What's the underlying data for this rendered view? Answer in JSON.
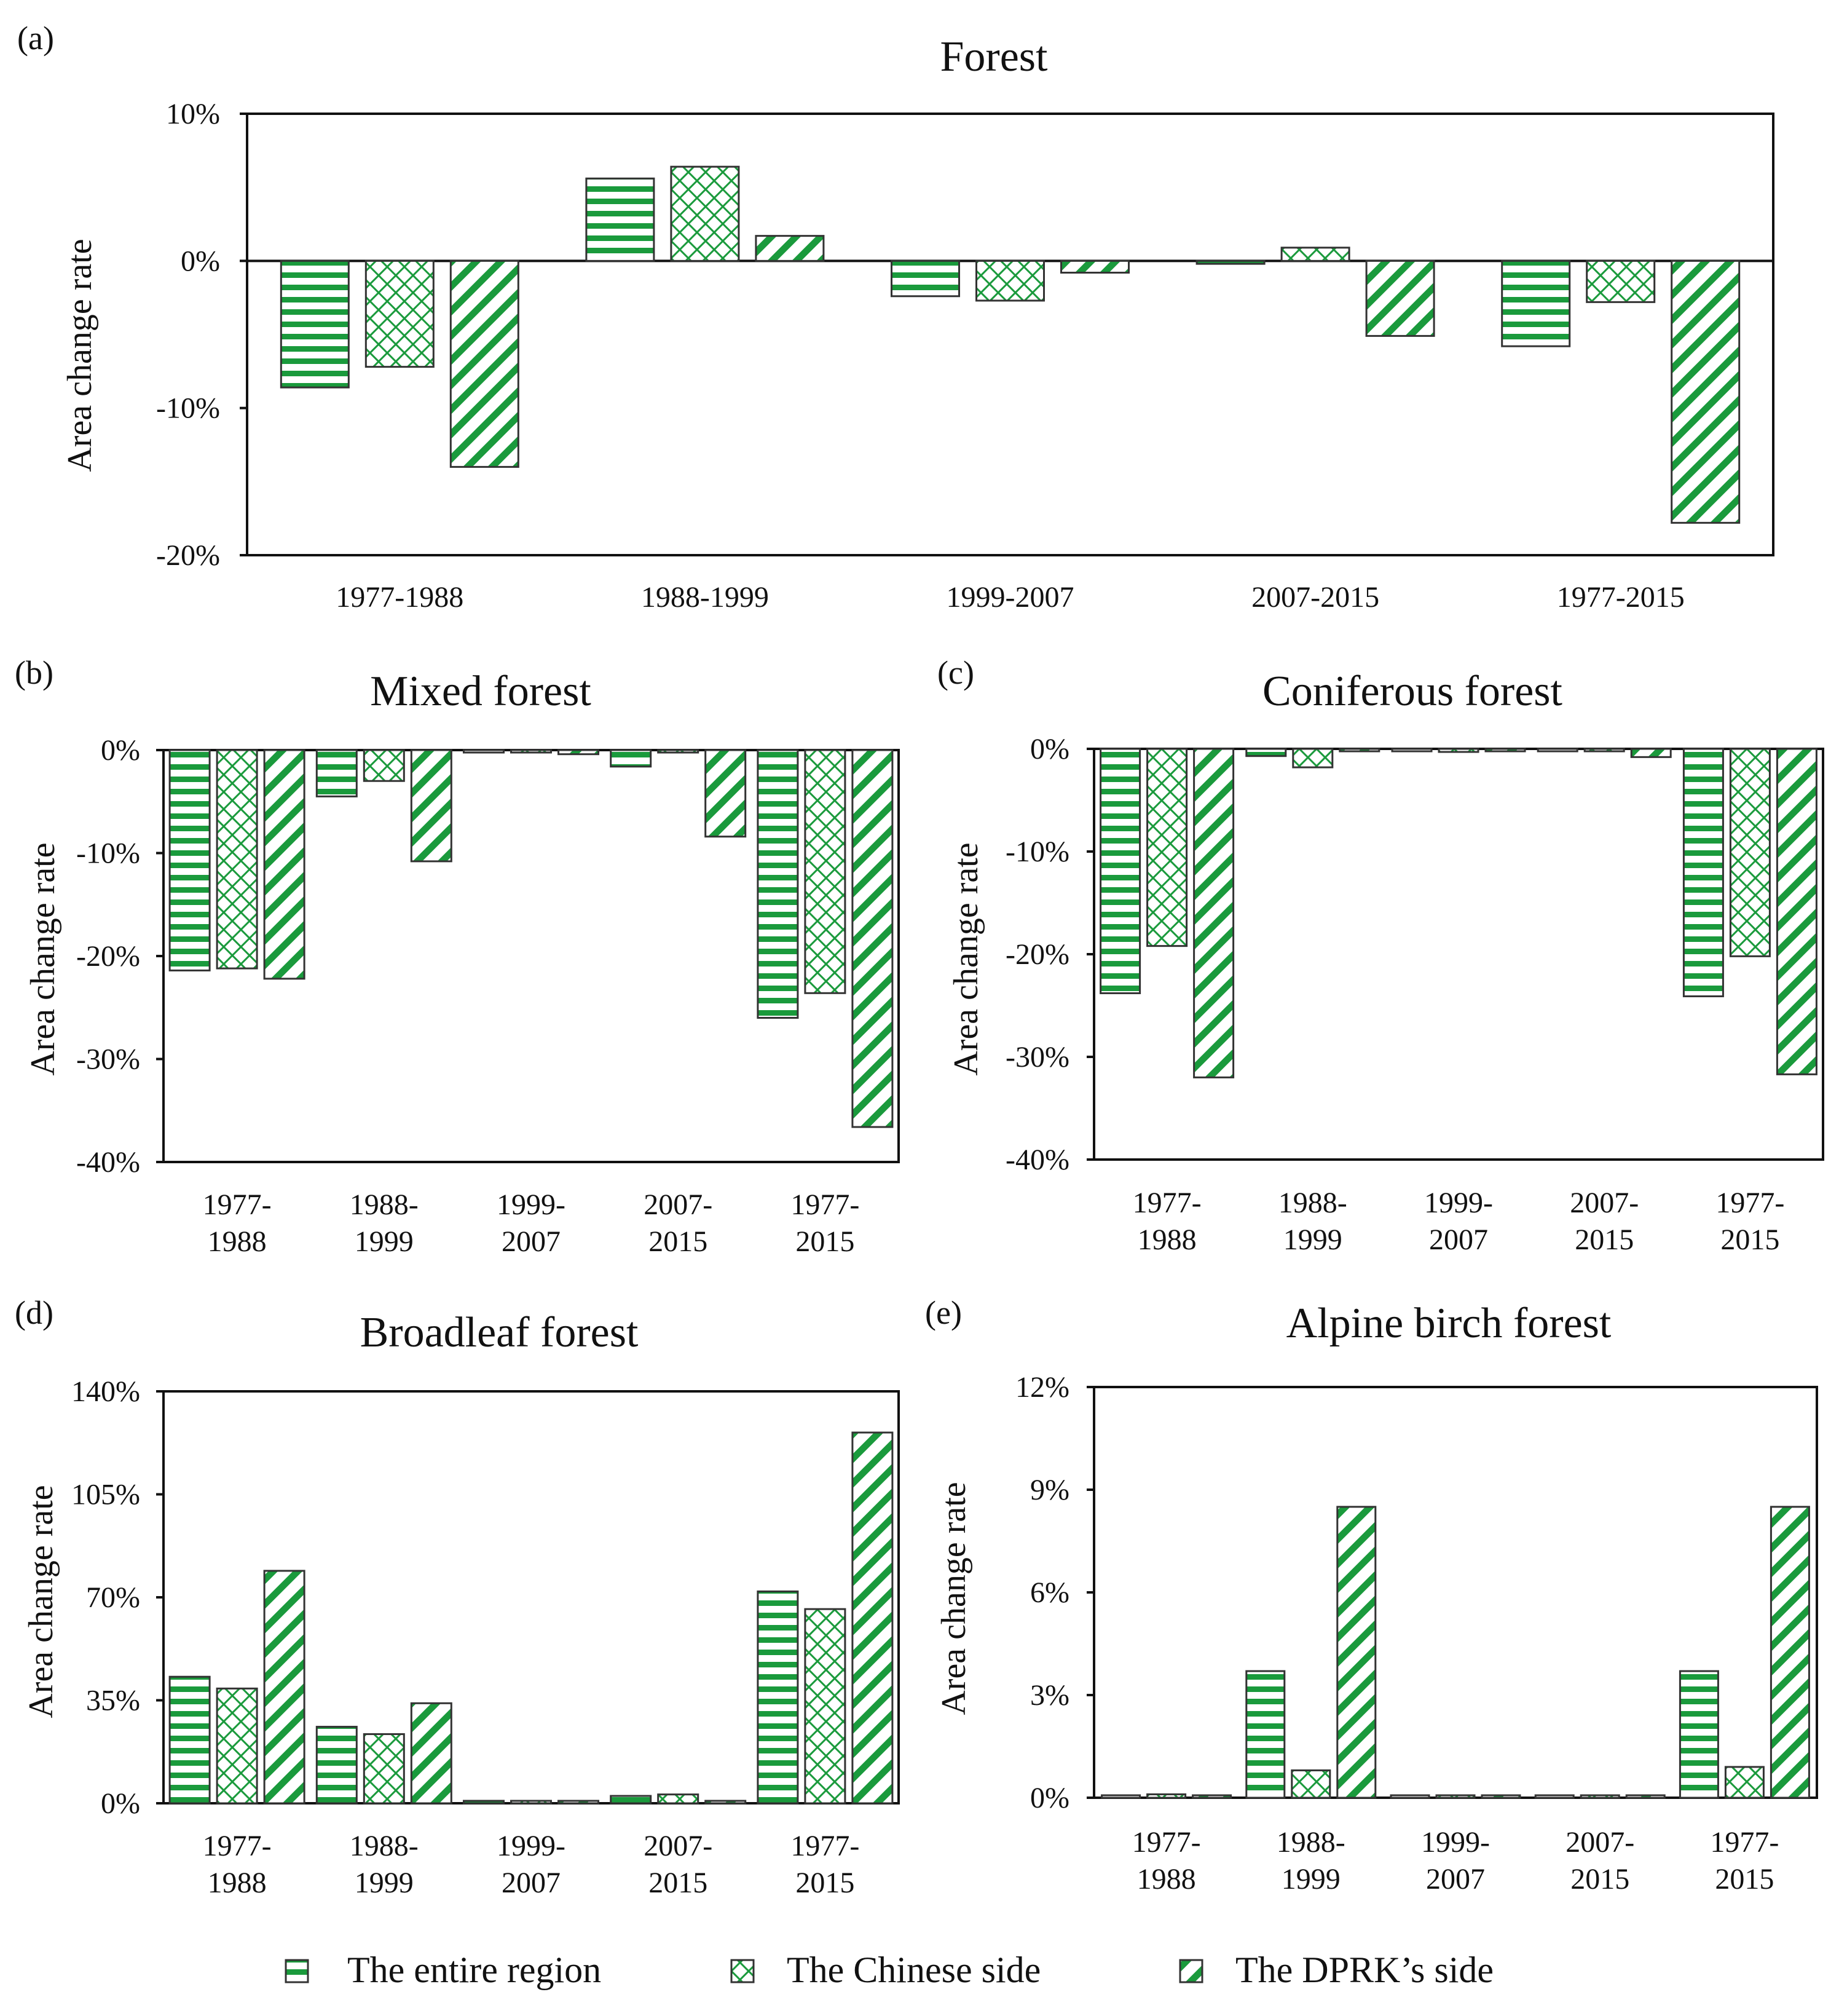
{
  "colors": {
    "bar_fill": "#1a9a3c",
    "bar_edge": "#333333",
    "pattern_bg": "#ffffff",
    "axis": "#111111"
  },
  "legend": [
    {
      "name": "The entire region",
      "pattern": "horizontal-lines"
    },
    {
      "name": "The Chinese side",
      "pattern": "crosshatch"
    },
    {
      "name": "The DPRK’s side",
      "pattern": "diagonal-lines"
    }
  ],
  "chart_data": [
    {
      "panel": "(a)",
      "type": "bar",
      "title": "Forest",
      "ylabel": "Area change rate",
      "xlabel": "",
      "ylim": [
        -20,
        10
      ],
      "yticks": [
        10,
        0,
        -10,
        -20
      ],
      "ytick_labels": [
        "10%",
        "0%",
        "-10%",
        "-20%"
      ],
      "categories": [
        "1977-1988",
        "1988-1999",
        "1999-2007",
        "2007-2015",
        "1977-2015"
      ],
      "series": [
        {
          "name": "The entire region",
          "values": [
            -8.6,
            5.6,
            -2.4,
            -0.2,
            -5.8
          ]
        },
        {
          "name": "The Chinese side",
          "values": [
            -7.2,
            6.4,
            -2.7,
            0.9,
            -2.8
          ]
        },
        {
          "name": "The DPRK’s side",
          "values": [
            -14.0,
            1.7,
            -0.8,
            -5.1,
            -17.8
          ]
        }
      ]
    },
    {
      "panel": "(b)",
      "type": "bar",
      "title": "Mixed forest",
      "ylabel": "Area change rate",
      "xlabel": "",
      "ylim": [
        -40,
        0
      ],
      "yticks": [
        0,
        -10,
        -20,
        -30,
        -40
      ],
      "ytick_labels": [
        "0%",
        "-10%",
        "-20%",
        "-30%",
        "-40%"
      ],
      "categories": [
        "1977-\n1988",
        "1988-\n1999",
        "1999-\n2007",
        "2007-\n2015",
        "1977-\n2015"
      ],
      "series": [
        {
          "name": "The entire region",
          "values": [
            -21.4,
            -4.5,
            -0.2,
            -1.6,
            -26.0
          ]
        },
        {
          "name": "The Chinese side",
          "values": [
            -21.2,
            -3.0,
            -0.2,
            -0.2,
            -23.6
          ]
        },
        {
          "name": "The DPRK’s side",
          "values": [
            -22.2,
            -10.8,
            -0.4,
            -8.4,
            -36.6
          ]
        }
      ]
    },
    {
      "panel": "(c)",
      "type": "bar",
      "title": "Coniferous forest",
      "ylabel": "Area change rate",
      "xlabel": "",
      "ylim": [
        -40,
        0
      ],
      "yticks": [
        0,
        -10,
        -20,
        -30,
        -40
      ],
      "ytick_labels": [
        "0%",
        "-10%",
        "-20%",
        "-30%",
        "-40%"
      ],
      "categories": [
        "1977-\n1988",
        "1988-\n1999",
        "1999-\n2007",
        "2007-\n2015",
        "1977-\n2015"
      ],
      "series": [
        {
          "name": "The entire region",
          "values": [
            -23.8,
            -0.7,
            -0.2,
            -0.2,
            -24.1
          ]
        },
        {
          "name": "The Chinese side",
          "values": [
            -19.2,
            -1.8,
            -0.3,
            -0.2,
            -20.2
          ]
        },
        {
          "name": "The DPRK’s side",
          "values": [
            -32.0,
            -0.2,
            -0.2,
            -0.8,
            -31.7
          ]
        }
      ]
    },
    {
      "panel": "(d)",
      "type": "bar",
      "title": "Broadleaf forest",
      "ylabel": "Area change rate",
      "xlabel": "",
      "ylim": [
        0,
        140
      ],
      "yticks": [
        140,
        105,
        70,
        35,
        0
      ],
      "ytick_labels": [
        "140%",
        "105%",
        "70%",
        "35%",
        "0%"
      ],
      "categories": [
        "1977-\n1988",
        "1988-\n1999",
        "1999-\n2007",
        "2007-\n2015",
        "1977-\n2015"
      ],
      "series": [
        {
          "name": "The entire region",
          "values": [
            43.0,
            26.0,
            0.5,
            2.5,
            72.0
          ]
        },
        {
          "name": "The Chinese side",
          "values": [
            39.0,
            23.5,
            0.3,
            3.0,
            66.0
          ]
        },
        {
          "name": "The DPRK’s side",
          "values": [
            79.0,
            34.0,
            0.5,
            0.5,
            126.0
          ]
        }
      ]
    },
    {
      "panel": "(e)",
      "type": "bar",
      "title": "Alpine birch forest",
      "ylabel": "Area change rate",
      "xlabel": "",
      "ylim": [
        0,
        12
      ],
      "yticks": [
        12,
        9,
        6,
        3,
        0
      ],
      "ytick_labels": [
        "12%",
        "9%",
        "6%",
        "3%",
        "0%"
      ],
      "categories": [
        "1977-\n1988",
        "1988-\n1999",
        "1999-\n2007",
        "2007-\n2015",
        "1977-\n2015"
      ],
      "series": [
        {
          "name": "The entire region",
          "values": [
            0.05,
            3.7,
            0.0,
            0.0,
            3.7
          ]
        },
        {
          "name": "The Chinese side",
          "values": [
            0.1,
            0.8,
            0.0,
            0.0,
            0.9
          ]
        },
        {
          "name": "The DPRK’s side",
          "values": [
            0.0,
            8.5,
            0.0,
            0.0,
            8.5
          ]
        }
      ]
    }
  ]
}
